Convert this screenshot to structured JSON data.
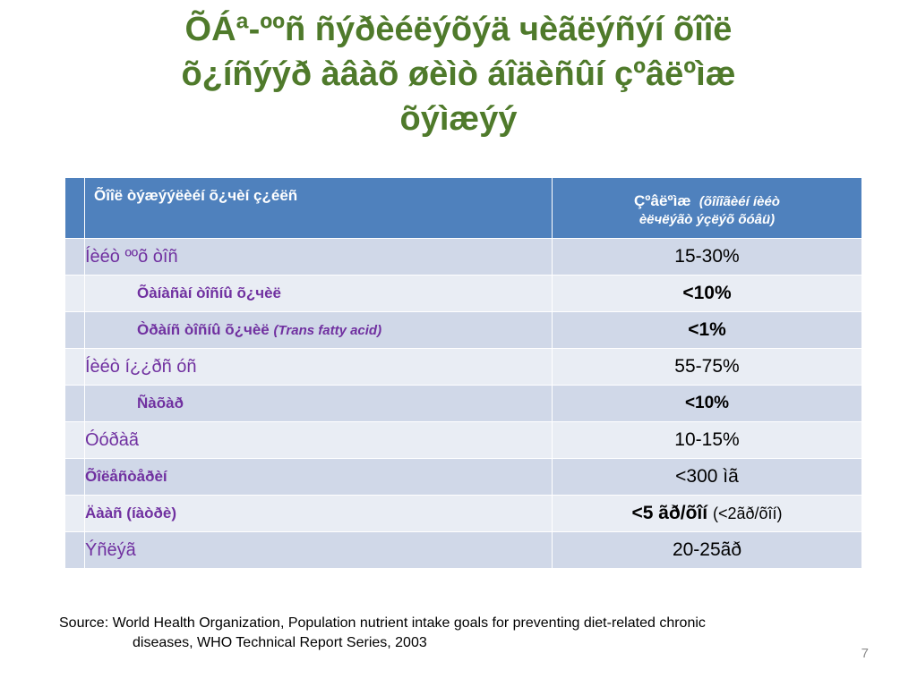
{
  "slide": {
    "title_lines": [
      "ÕÁª-ººñ ñýðèéëýõýä чèãëýñýí õîîë",
      "õ¿íñýýð àâàõ øèìò áîäèñûí çºâëºìæ",
      "õýìæýý"
    ],
    "page_number": "7"
  },
  "table": {
    "header": {
      "col1": "Õîîë òýæýýëèéí õ¿чèí ç¿éëñ",
      "col2_main": "Çºâëºìæ",
      "col2_note_line1": "(õîíîãèéí íèéò",
      "col2_note_line2": "èëчëýãò ýçëýõ õóâü)"
    },
    "rows": [
      {
        "label": "Íèéò ººõ òîñ",
        "value": "15-30%"
      },
      {
        "label": "Õàíàñàí òîñíû õ¿чèë",
        "value": "<10%"
      },
      {
        "label": "Òðàíñ òîñíû õ¿чèë",
        "label_en": "(Trans fatty acid)",
        "value": "<1%"
      },
      {
        "label": "Íèéò í¿¿ðñ óñ",
        "value": "55-75%"
      },
      {
        "label": "Ñàõàð",
        "value": "<10%"
      },
      {
        "label": "Óóðàã",
        "value": "10-15%"
      },
      {
        "label": "Õîëåñòåðèí",
        "value": "<300 ìã"
      },
      {
        "label": "Äààñ (íàòðè)",
        "value": "<5 ãð/õîí",
        "value_note": "(<2ãð/õîí)"
      },
      {
        "label": "Ýñëýã",
        "value": "20-25ãð"
      }
    ]
  },
  "source": {
    "line1": "Source:  World Health Organization, Population nutrient intake goals for preventing  diet-related chronic",
    "line2": "diseases, WHO Technical  Report  Series, 2003"
  }
}
